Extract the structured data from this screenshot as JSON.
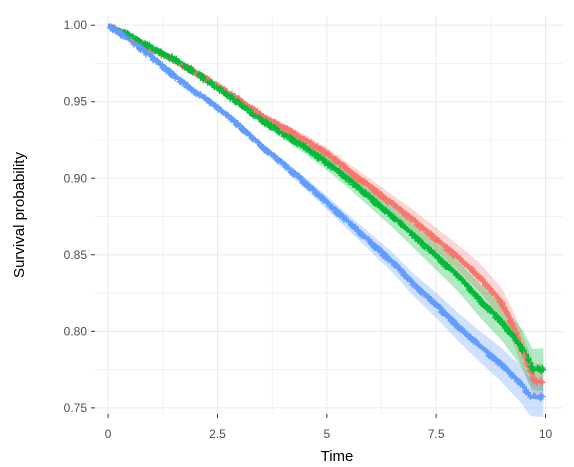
{
  "chart_data": {
    "type": "line",
    "subtype": "kaplan-meier survival curves with confidence bands and censor marks",
    "title": "",
    "xlabel": "Time",
    "ylabel": "Survival probability",
    "xlim": [
      -0.3,
      10.4
    ],
    "ylim": [
      0.746,
      1.006
    ],
    "x_ticks": [
      0,
      2.5,
      5,
      7.5,
      10
    ],
    "x_tick_labels": [
      "0",
      "2.5",
      "5",
      "7.5",
      "10"
    ],
    "y_ticks": [
      0.75,
      0.8,
      0.85,
      0.9,
      0.95,
      1.0
    ],
    "y_tick_labels": [
      "0.75",
      "0.80",
      "0.85",
      "0.90",
      "0.95",
      "1.00"
    ],
    "grid": true,
    "legend": "none",
    "background": "#ffffff",
    "grid_color": "#ebebeb",
    "series": [
      {
        "color": "#F8766D",
        "points": [
          [
            0,
            1.0
          ],
          [
            0.5,
            0.992
          ],
          [
            1.0,
            0.984
          ],
          [
            1.5,
            0.977
          ],
          [
            2.0,
            0.969
          ],
          [
            2.5,
            0.96
          ],
          [
            3.0,
            0.951
          ],
          [
            3.5,
            0.941
          ],
          [
            4.0,
            0.933
          ],
          [
            4.5,
            0.925
          ],
          [
            5.0,
            0.916
          ],
          [
            5.5,
            0.905
          ],
          [
            6.0,
            0.894
          ],
          [
            6.5,
            0.883
          ],
          [
            7.0,
            0.872
          ],
          [
            7.5,
            0.86
          ],
          [
            8.0,
            0.848
          ],
          [
            8.5,
            0.835
          ],
          [
            9.0,
            0.818
          ],
          [
            9.3,
            0.8
          ],
          [
            9.5,
            0.785
          ],
          [
            9.75,
            0.767
          ],
          [
            9.95,
            0.767
          ]
        ],
        "ci_halfwidth_start": 0.0,
        "ci_halfwidth_end": 0.012
      },
      {
        "color": "#00BA38",
        "points": [
          [
            0,
            1.0
          ],
          [
            0.5,
            0.993
          ],
          [
            1.0,
            0.985
          ],
          [
            1.5,
            0.978
          ],
          [
            2.0,
            0.969
          ],
          [
            2.5,
            0.959
          ],
          [
            3.0,
            0.949
          ],
          [
            3.5,
            0.938
          ],
          [
            4.0,
            0.929
          ],
          [
            4.5,
            0.92
          ],
          [
            5.0,
            0.91
          ],
          [
            5.5,
            0.899
          ],
          [
            6.0,
            0.887
          ],
          [
            6.5,
            0.875
          ],
          [
            7.0,
            0.862
          ],
          [
            7.5,
            0.849
          ],
          [
            8.0,
            0.836
          ],
          [
            8.5,
            0.82
          ],
          [
            9.0,
            0.806
          ],
          [
            9.3,
            0.795
          ],
          [
            9.5,
            0.787
          ],
          [
            9.7,
            0.775
          ],
          [
            9.95,
            0.775
          ]
        ],
        "ci_halfwidth_start": 0.0,
        "ci_halfwidth_end": 0.014
      },
      {
        "color": "#619CFF",
        "points": [
          [
            0,
            1.0
          ],
          [
            0.5,
            0.99
          ],
          [
            1.0,
            0.979
          ],
          [
            1.5,
            0.967
          ],
          [
            2.0,
            0.956
          ],
          [
            2.5,
            0.946
          ],
          [
            3.0,
            0.934
          ],
          [
            3.5,
            0.921
          ],
          [
            4.0,
            0.909
          ],
          [
            4.5,
            0.897
          ],
          [
            5.0,
            0.884
          ],
          [
            5.5,
            0.871
          ],
          [
            6.0,
            0.858
          ],
          [
            6.5,
            0.845
          ],
          [
            7.0,
            0.83
          ],
          [
            7.5,
            0.817
          ],
          [
            8.0,
            0.803
          ],
          [
            8.5,
            0.79
          ],
          [
            9.0,
            0.778
          ],
          [
            9.2,
            0.772
          ],
          [
            9.45,
            0.765
          ],
          [
            9.65,
            0.757
          ],
          [
            9.95,
            0.757
          ]
        ],
        "ci_halfwidth_start": 0.0,
        "ci_halfwidth_end": 0.013
      }
    ]
  }
}
